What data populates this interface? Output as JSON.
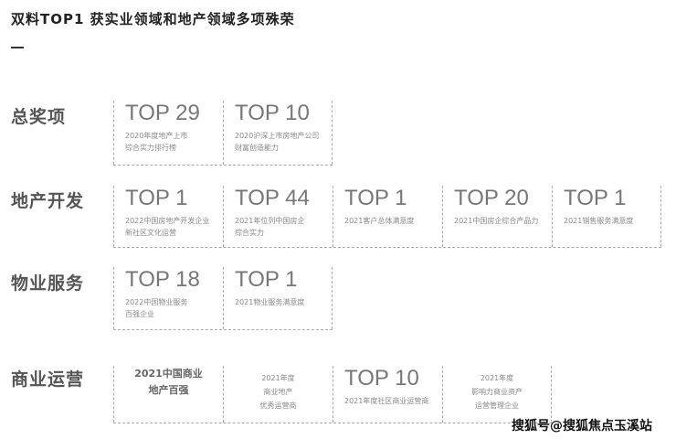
{
  "title": "双料TOP1  获实业领域和地产领域多项殊荣",
  "rows": [
    {
      "label": "总奖项",
      "cells": [
        {
          "top": "TOP 29",
          "desc": [
            "2020年度地产上市",
            "综合实力排行榜"
          ]
        },
        {
          "top": "TOP 10",
          "desc": [
            "2020沪深上市房地产公司",
            "财富创造能力"
          ]
        }
      ]
    },
    {
      "label": "地产开发",
      "cells": [
        {
          "top": "TOP 1",
          "desc": [
            "2022中国房地产开发企业",
            "新社区文化运营"
          ]
        },
        {
          "top": "TOP 44",
          "desc": [
            "2021年位列中国房企",
            "综合实力"
          ]
        },
        {
          "top": "TOP 1",
          "desc": [
            "2021客户总体满意度"
          ]
        },
        {
          "top": "TOP 20",
          "desc": [
            "2021中国房企综合产品力"
          ]
        },
        {
          "top": "TOP 1",
          "desc": [
            "2021销售服务满意度"
          ]
        }
      ]
    },
    {
      "label": "物业服务",
      "cells": [
        {
          "top": "TOP 18",
          "desc": [
            "2022中国物业服务",
            "百强企业"
          ]
        },
        {
          "top": "TOP 1",
          "desc": [
            "2021物业服务满意度"
          ]
        }
      ]
    },
    {
      "label": "商业运营",
      "cells": [
        {
          "bold": [
            "2021中国商业",
            "地产百强"
          ]
        },
        {
          "desc": [
            "2021年度",
            "商业地产",
            "优秀运营商"
          ]
        },
        {
          "top": "TOP 10",
          "desc": [
            "2021年度社区商业运营商"
          ]
        },
        {
          "desc": [
            "2021年度",
            "影响力商业资产",
            "运营管理企业"
          ]
        }
      ]
    }
  ],
  "watermark": "搜狐号@搜狐焦点玉溪站"
}
